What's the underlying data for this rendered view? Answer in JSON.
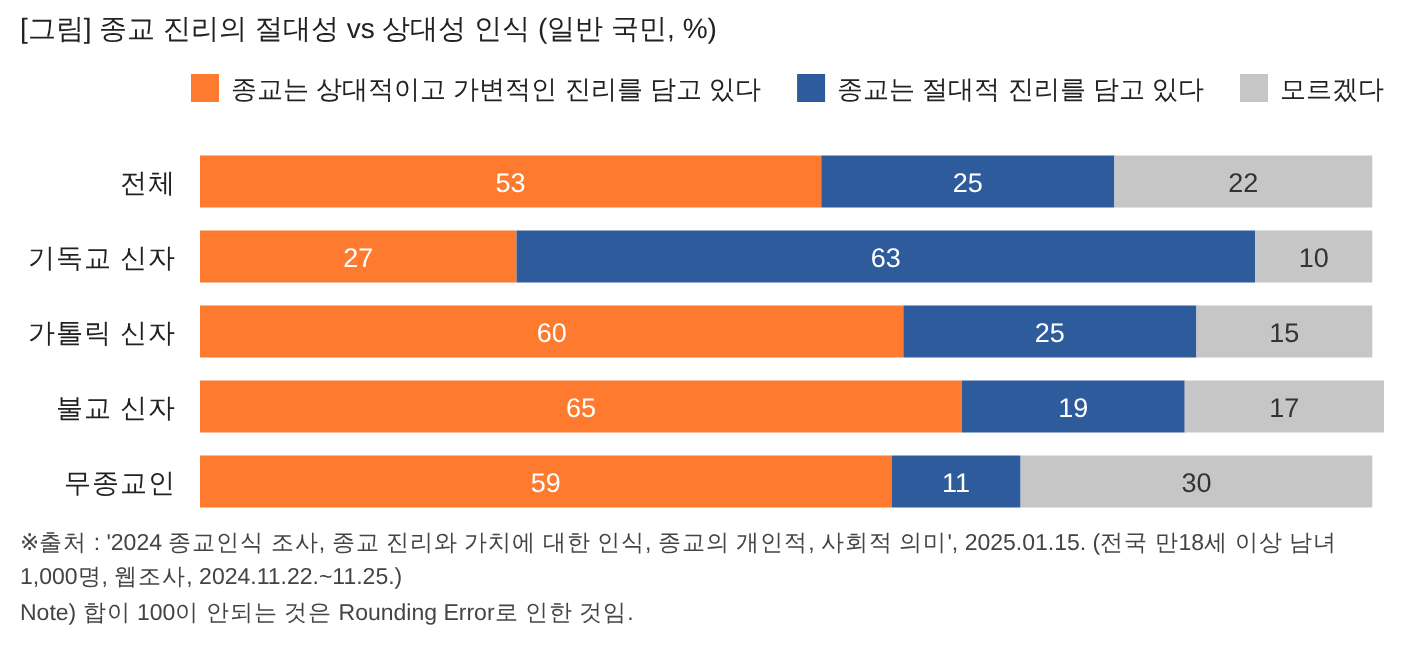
{
  "chart_data": {
    "type": "bar",
    "orientation": "horizontal",
    "stacked": true,
    "title": "[그림] 종교 진리의 절대성 vs 상대성 인식 (일반 국민, %)",
    "categories": [
      "전체",
      "기독교 신자",
      "가톨릭 신자",
      "불교 신자",
      "무종교인"
    ],
    "series": [
      {
        "name": "종교는 상대적이고 가변적인 진리를 담고 있다",
        "color": "#fd7a2f",
        "values": [
          53,
          27,
          60,
          65,
          59
        ]
      },
      {
        "name": "종교는 절대적 진리를 담고 있다",
        "color": "#2d5b9b",
        "values": [
          25,
          63,
          25,
          19,
          11
        ]
      },
      {
        "name": "모르겠다",
        "color": "#c6c6c6",
        "values": [
          22,
          10,
          15,
          17,
          30
        ]
      }
    ],
    "data_labels": true,
    "legend": "top right",
    "annotations": [
      "※출처 : '2024 종교인식 조사, 종교 진리와 가치에 대한 인식, 종교의 개인적, 사회적 의미', 2025.01.15. (전국 만18세 이상 남녀 1,000명, 웹조사, 2024.11.22.~11.25.)",
      "Note) 합이 100이 안되는 것은 Rounding Error로 인한 것임."
    ]
  }
}
